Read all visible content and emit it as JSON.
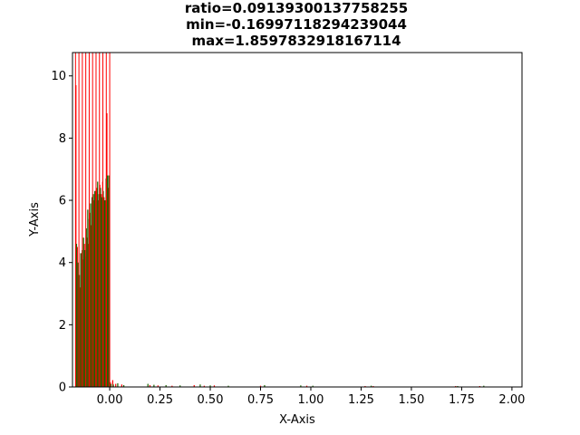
{
  "chart_data": {
    "type": "bar",
    "title_lines": [
      "ratio=0.09139300137758255",
      "min=-0.16997118294239044",
      "max=1.8597832918167114"
    ],
    "xlabel": "X-Axis",
    "ylabel": "Y-Axis",
    "xlim": [
      -0.185,
      2.05
    ],
    "ylim": [
      0,
      10.75
    ],
    "x_ticks": [
      0.0,
      0.25,
      0.5,
      0.75,
      1.0,
      1.25,
      1.5,
      1.75,
      2.0
    ],
    "x_tick_labels": [
      "0.00",
      "0.25",
      "0.50",
      "0.75",
      "1.00",
      "1.25",
      "1.50",
      "1.75",
      "2.00"
    ],
    "y_ticks": [
      0,
      2,
      4,
      6,
      8,
      10
    ],
    "y_tick_labels": [
      "0",
      "2",
      "4",
      "6",
      "8",
      "10"
    ],
    "bar_width": 0.0055,
    "vertical_lines": {
      "color": "#ff0000",
      "x": [
        -0.17,
        -0.153,
        -0.136,
        -0.119,
        -0.102,
        -0.085,
        -0.068,
        -0.051,
        -0.034,
        -0.017,
        0.0
      ]
    },
    "series": [
      {
        "name": "red",
        "color": "#ff0000",
        "x": [
          -0.168,
          -0.161,
          -0.154,
          -0.147,
          -0.14,
          -0.133,
          -0.126,
          -0.119,
          -0.112,
          -0.105,
          -0.098,
          -0.091,
          -0.084,
          -0.077,
          -0.07,
          -0.063,
          -0.056,
          -0.049,
          -0.042,
          -0.035,
          -0.028,
          -0.021,
          -0.014,
          -0.007,
          0.003,
          0.015,
          0.03,
          0.06,
          0.2,
          0.24,
          0.31,
          0.42,
          0.47,
          0.52,
          0.75,
          0.98,
          1.27,
          1.31,
          1.72,
          1.84
        ],
        "values": [
          9.7,
          4.5,
          3.6,
          3.2,
          4.3,
          4.1,
          4.6,
          4.2,
          4.8,
          4.6,
          5.6,
          5.2,
          5.0,
          6.0,
          6.3,
          6.4,
          6.0,
          6.5,
          6.2,
          6.6,
          6.1,
          6.0,
          8.8,
          6.4,
          0.15,
          0.22,
          0.1,
          0.08,
          0.06,
          0.05,
          0.04,
          0.06,
          0.04,
          0.05,
          0.04,
          0.04,
          0.03,
          0.03,
          0.03,
          0.02
        ]
      },
      {
        "name": "green",
        "color": "#1a6600",
        "x": [
          -0.165,
          -0.158,
          -0.151,
          -0.144,
          -0.137,
          -0.13,
          -0.123,
          -0.116,
          -0.109,
          -0.102,
          -0.095,
          -0.088,
          -0.081,
          -0.074,
          -0.067,
          -0.06,
          -0.053,
          -0.046,
          -0.039,
          -0.032,
          -0.025,
          -0.018,
          -0.011,
          -0.004,
          0.006,
          0.018,
          0.04,
          0.07,
          0.19,
          0.22,
          0.28,
          0.35,
          0.45,
          0.5,
          0.59,
          0.77,
          0.95,
          1.01,
          1.3,
          1.73,
          1.86
        ],
        "values": [
          4.6,
          4.0,
          3.6,
          4.3,
          4.4,
          4.8,
          4.4,
          5.1,
          5.7,
          5.4,
          5.9,
          6.1,
          6.2,
          6.3,
          6.0,
          6.6,
          6.2,
          6.4,
          6.1,
          6.3,
          6.0,
          6.7,
          6.8,
          6.8,
          0.1,
          0.08,
          0.12,
          0.06,
          0.1,
          0.07,
          0.06,
          0.05,
          0.08,
          0.05,
          0.04,
          0.06,
          0.05,
          0.04,
          0.04,
          0.03,
          0.04
        ]
      }
    ]
  }
}
